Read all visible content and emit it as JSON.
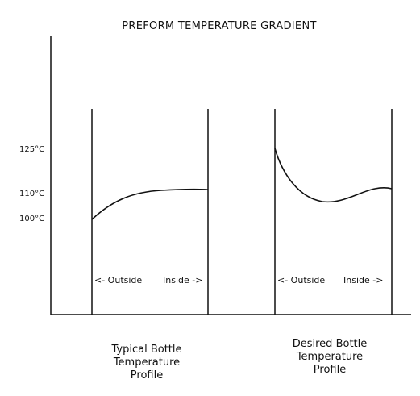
{
  "title": "PREFORM TEMPERATURE GRADIENT",
  "temperature_labels": [
    "125°C",
    "110°C",
    "100°C"
  ],
  "panels": [
    {
      "direction_left": "<- Outside",
      "direction_right": "Inside ->",
      "caption": [
        "Typical Bottle",
        "Temperature",
        "Profile"
      ],
      "curve": "rises from 100°C at the outside wall and levels off near 110°C toward the inside"
    },
    {
      "direction_left": "<- Outside",
      "direction_right": "Inside ->",
      "caption": [
        "Desired Bottle",
        "Temperature",
        "Profile"
      ],
      "curve": "starts near 125°C at the outside wall, dips to about 104°C, then returns to about 110°C at the inside"
    }
  ]
}
